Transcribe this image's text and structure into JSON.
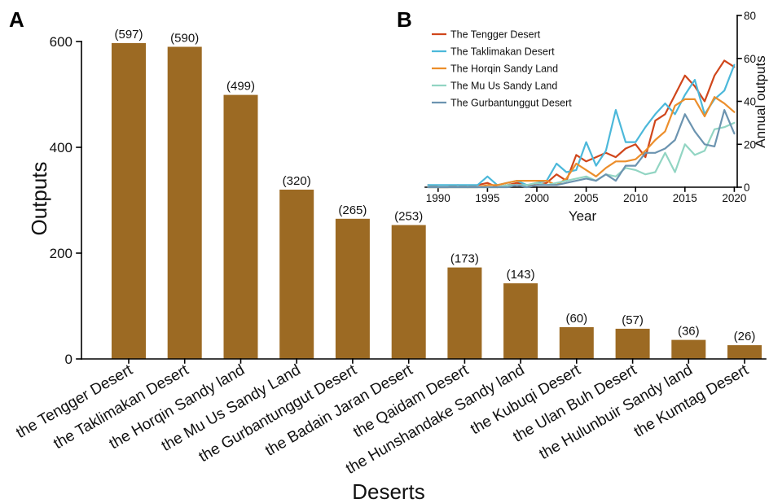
{
  "chart_data": [
    {
      "panel": "A",
      "type": "bar",
      "categories": [
        "the Tengger Desert",
        "the Taklimakan Desert",
        "the Horqin Sandy land",
        "the Mu Us Sandy Land",
        "the Gurbantunggut Desert",
        "the Badain Jaran Desert",
        "the Qaidam Desert",
        "the Hunshandake Sandy land",
        "the Kubuqi Desert",
        "the Ulan Buh Desert",
        "the Hulunbuir Sandy land",
        "the Kumtag Desert"
      ],
      "values": [
        597,
        590,
        499,
        320,
        265,
        253,
        173,
        143,
        60,
        57,
        36,
        26
      ],
      "value_labels": [
        "(597)",
        "(590)",
        "(499)",
        "(320)",
        "(265)",
        "(253)",
        "(173)",
        "(143)",
        "(60)",
        "(57)",
        "(36)",
        "(26)"
      ],
      "xlabel": "Deserts",
      "ylabel": "Outputs",
      "ylim": [
        0,
        600
      ],
      "yticks": [
        0,
        200,
        400,
        600
      ],
      "bar_color": "#9C6A23",
      "grid": false
    },
    {
      "panel": "B",
      "type": "line",
      "x": [
        1989,
        1990,
        1991,
        1992,
        1993,
        1994,
        1995,
        1996,
        1997,
        1998,
        1999,
        2000,
        2001,
        2002,
        2003,
        2004,
        2005,
        2006,
        2007,
        2008,
        2009,
        2010,
        2011,
        2012,
        2013,
        2014,
        2015,
        2016,
        2017,
        2018,
        2019,
        2020
      ],
      "series": [
        {
          "name": "The Tengger Desert",
          "color": "#D0461B",
          "values": [
            1,
            0,
            0,
            1,
            0,
            1,
            2,
            0,
            1,
            2,
            1,
            1,
            2,
            6,
            3,
            15,
            12,
            14,
            16,
            14,
            18,
            20,
            14,
            31,
            34,
            43,
            52,
            47,
            40,
            52,
            59,
            56
          ]
        },
        {
          "name": "The Taklimakan Desert",
          "color": "#4CB8DA",
          "values": [
            1,
            1,
            1,
            1,
            1,
            1,
            5,
            1,
            2,
            3,
            1,
            2,
            3,
            11,
            7,
            8,
            21,
            10,
            17,
            36,
            21,
            21,
            28,
            34,
            39,
            34,
            43,
            50,
            34,
            41,
            45,
            57
          ]
        },
        {
          "name": "The Horqin Sandy Land",
          "color": "#EC8E2B",
          "values": [
            0,
            0,
            0,
            0,
            0,
            0,
            1,
            1,
            2,
            3,
            3,
            3,
            3,
            1,
            4,
            11,
            8,
            5,
            9,
            12,
            12,
            13,
            17,
            22,
            26,
            38,
            41,
            41,
            33,
            42,
            39,
            35
          ]
        },
        {
          "name": "The Mu Us Sandy Land",
          "color": "#92D5C3",
          "values": [
            0,
            0,
            0,
            0,
            0,
            0,
            0,
            0,
            1,
            1,
            1,
            2,
            1,
            2,
            3,
            4,
            5,
            3,
            6,
            5,
            9,
            8,
            6,
            7,
            16,
            7,
            20,
            15,
            17,
            27,
            28,
            30
          ]
        },
        {
          "name": "The Gurbantunggut Desert",
          "color": "#6C94B0",
          "values": [
            0,
            0,
            0,
            0,
            0,
            0,
            0,
            0,
            0,
            1,
            0,
            1,
            1,
            1,
            2,
            3,
            4,
            3,
            6,
            3,
            10,
            10,
            16,
            16,
            18,
            22,
            34,
            26,
            20,
            19,
            36,
            25
          ]
        }
      ],
      "xlabel": "Year",
      "ylabel": "Annual outputs",
      "xlim": [
        1988.7,
        2020.3
      ],
      "ylim": [
        0,
        80
      ],
      "xticks": [
        1990,
        1995,
        2000,
        2005,
        2010,
        2015,
        2020
      ],
      "yticks": [
        0,
        20,
        40,
        60,
        80
      ],
      "y_axis_side": "right",
      "legend_position": "top-left",
      "grid": false
    }
  ]
}
